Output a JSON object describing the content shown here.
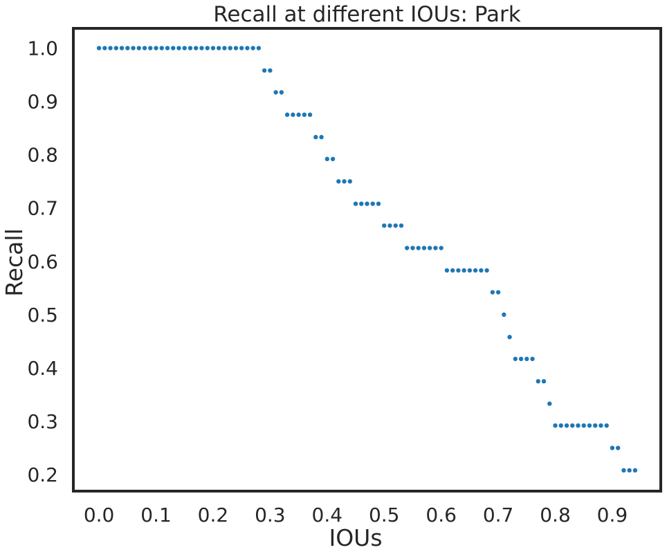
{
  "chart_data": {
    "type": "scatter",
    "title": "Recall at different IOUs: Park",
    "xlabel": "IOUs",
    "ylabel": "Recall",
    "xlim": [
      -0.045,
      0.985
    ],
    "ylim": [
      0.169,
      1.037
    ],
    "xticks": [
      0.0,
      0.1,
      0.2,
      0.3,
      0.4,
      0.5,
      0.6,
      0.7,
      0.8,
      0.9
    ],
    "xtick_labels": [
      "0.0",
      "0.1",
      "0.2",
      "0.3",
      "0.4",
      "0.5",
      "0.6",
      "0.7",
      "0.8",
      "0.9"
    ],
    "yticks": [
      0.2,
      0.3,
      0.4,
      0.5,
      0.6,
      0.7,
      0.8,
      0.9,
      1.0
    ],
    "ytick_labels": [
      "0.2",
      "0.3",
      "0.4",
      "0.5",
      "0.6",
      "0.7",
      "0.8",
      "0.9",
      "1.0"
    ],
    "grid": false,
    "legend": "none",
    "marker_color": "#1f77b4",
    "axis_color": "#262626",
    "x": [
      0.0,
      0.01,
      0.02,
      0.03,
      0.04,
      0.05,
      0.06,
      0.07,
      0.08,
      0.09,
      0.1,
      0.11,
      0.12,
      0.13,
      0.14,
      0.15,
      0.16,
      0.17,
      0.18,
      0.19,
      0.2,
      0.21,
      0.22,
      0.23,
      0.24,
      0.25,
      0.26,
      0.27,
      0.28,
      0.29,
      0.3,
      0.31,
      0.32,
      0.33,
      0.34,
      0.35,
      0.36,
      0.37,
      0.38,
      0.39,
      0.4,
      0.41,
      0.42,
      0.43,
      0.44,
      0.45,
      0.46,
      0.47,
      0.48,
      0.49,
      0.5,
      0.51,
      0.52,
      0.53,
      0.54,
      0.55,
      0.56,
      0.57,
      0.58,
      0.59,
      0.6,
      0.61,
      0.62,
      0.63,
      0.64,
      0.65,
      0.66,
      0.67,
      0.68,
      0.69,
      0.7,
      0.71,
      0.72,
      0.73,
      0.74,
      0.75,
      0.76,
      0.77,
      0.78,
      0.79,
      0.8,
      0.81,
      0.82,
      0.83,
      0.84,
      0.85,
      0.86,
      0.87,
      0.88,
      0.89,
      0.9,
      0.91,
      0.92,
      0.93,
      0.94
    ],
    "y": [
      1.0,
      1.0,
      1.0,
      1.0,
      1.0,
      1.0,
      1.0,
      1.0,
      1.0,
      1.0,
      1.0,
      1.0,
      1.0,
      1.0,
      1.0,
      1.0,
      1.0,
      1.0,
      1.0,
      1.0,
      1.0,
      1.0,
      1.0,
      1.0,
      1.0,
      1.0,
      1.0,
      1.0,
      1.0,
      0.958,
      0.958,
      0.917,
      0.917,
      0.875,
      0.875,
      0.875,
      0.875,
      0.875,
      0.833,
      0.833,
      0.792,
      0.792,
      0.75,
      0.75,
      0.75,
      0.708,
      0.708,
      0.708,
      0.708,
      0.708,
      0.667,
      0.667,
      0.667,
      0.667,
      0.625,
      0.625,
      0.625,
      0.625,
      0.625,
      0.625,
      0.625,
      0.583,
      0.583,
      0.583,
      0.583,
      0.583,
      0.583,
      0.583,
      0.583,
      0.542,
      0.542,
      0.5,
      0.458,
      0.417,
      0.417,
      0.417,
      0.417,
      0.375,
      0.375,
      0.333,
      0.292,
      0.292,
      0.292,
      0.292,
      0.292,
      0.292,
      0.292,
      0.292,
      0.292,
      0.292,
      0.25,
      0.25,
      0.208,
      0.208,
      0.208
    ]
  }
}
